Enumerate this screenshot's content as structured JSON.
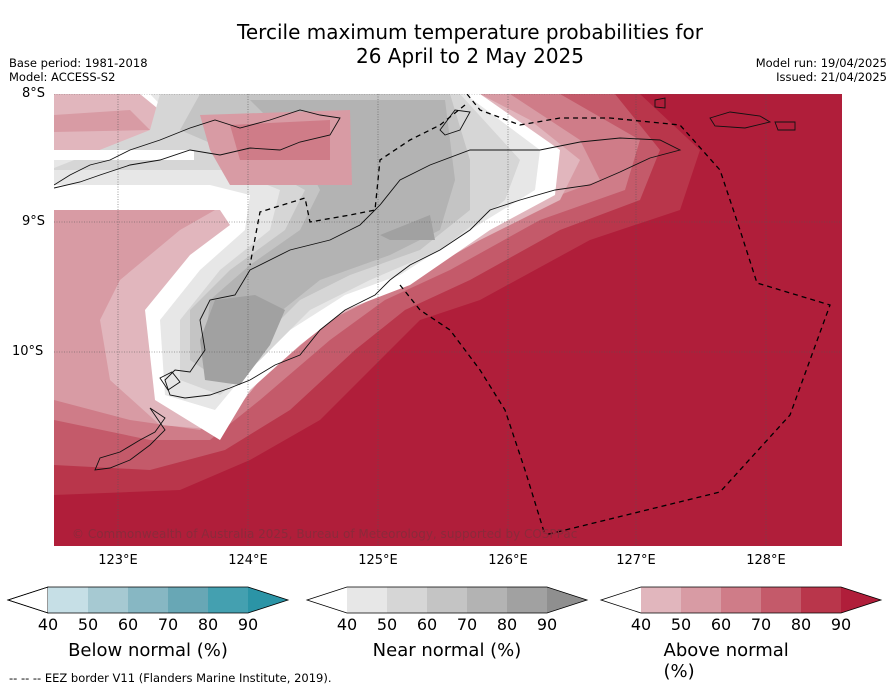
{
  "title": [
    "Tercile maximum temperature probabilities for",
    "26 April to 2 May 2025"
  ],
  "header_left": [
    "Base period: 1981-2018",
    "Model: ACCESS-S2"
  ],
  "header_right": [
    "Model run: 19/04/2025",
    "Issued: 21/04/2025"
  ],
  "lat_labels": [
    "8°S",
    "9°S",
    "10°S"
  ],
  "lon_labels": [
    "123°E",
    "124°E",
    "125°E",
    "126°E",
    "127°E",
    "128°E"
  ],
  "copyright": "© Commonwealth of Australia 2025, Bureau of Meteorology, supported by COSPPac",
  "colorbars": [
    {
      "label": "Below normal (%)",
      "ticks": [
        "40",
        "50",
        "60",
        "70",
        "80",
        "90"
      ],
      "colors": [
        "#c6dfe6",
        "#a6c9d2",
        "#87b7c3",
        "#68a7b5",
        "#44a0b0",
        "#2b94a6"
      ]
    },
    {
      "label": "Near normal (%)",
      "ticks": [
        "40",
        "50",
        "60",
        "70",
        "80",
        "90"
      ],
      "colors": [
        "#e7e7e7",
        "#d6d6d6",
        "#c4c4c4",
        "#b3b3b3",
        "#a1a1a1",
        "#8f8f8f"
      ]
    },
    {
      "label": "Above normal (%)",
      "ticks": [
        "40",
        "50",
        "60",
        "70",
        "80",
        "90"
      ],
      "colors": [
        "#e1b6bd",
        "#d89ba4",
        "#cf7c88",
        "#c45a6a",
        "#b9364b",
        "#b01e3a"
      ]
    }
  ],
  "footer": "-- -- -- EEZ border V11 (Flanders Marine Institute, 2019)."
}
